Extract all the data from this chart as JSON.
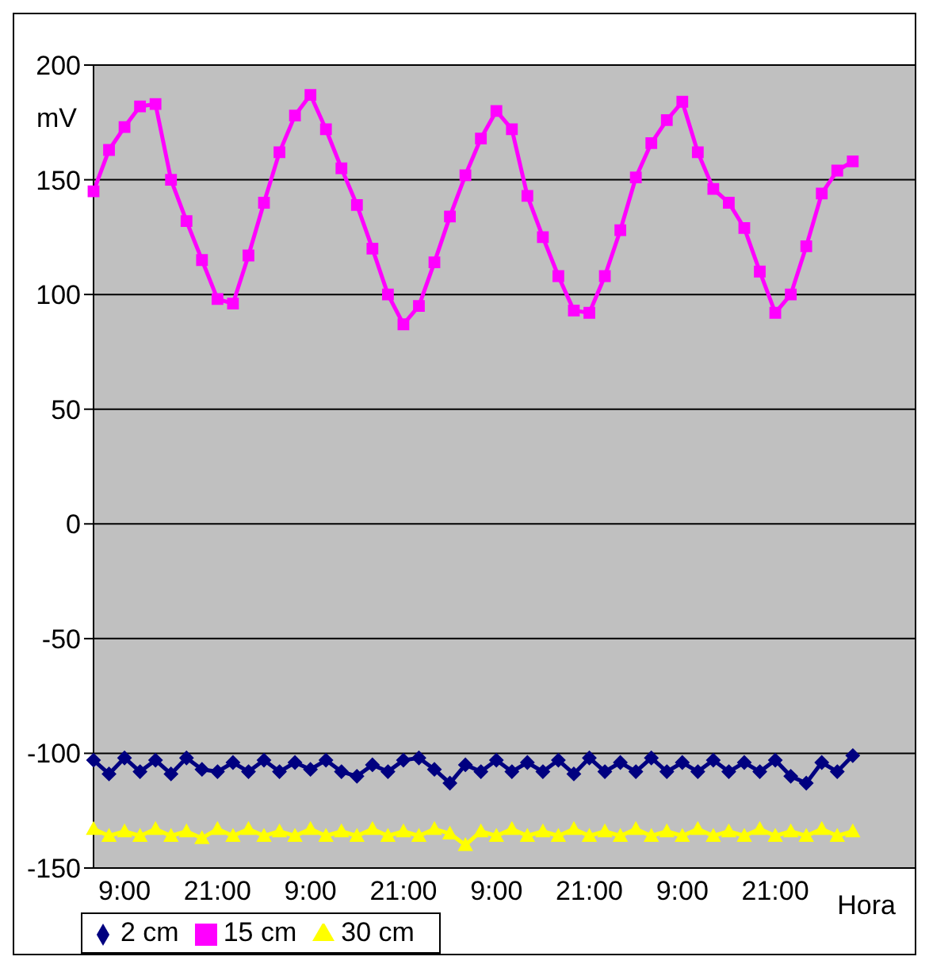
{
  "chart_data": {
    "type": "line",
    "xlabel": "Hora",
    "ylabel": "mV",
    "categories": [
      null,
      null,
      "9:00",
      null,
      null,
      null,
      null,
      null,
      "21:00",
      null,
      null,
      null,
      null,
      null,
      "9:00",
      null,
      null,
      null,
      null,
      null,
      "21:00",
      null,
      null,
      null,
      null,
      null,
      "9:00",
      null,
      null,
      null,
      null,
      null,
      "21:00",
      null,
      null,
      null,
      null,
      null,
      "9:00",
      null,
      null,
      null,
      null,
      null,
      "21:00",
      null,
      null,
      null,
      null,
      null,
      null,
      null,
      null,
      null
    ],
    "ylim": [
      -150,
      200
    ],
    "yticks": [
      -150,
      -100,
      -50,
      0,
      50,
      100,
      150,
      200
    ],
    "grid": "y",
    "legend": "bottom",
    "line_style": "solid",
    "series": [
      {
        "name": "2 cm",
        "color": "#000080",
        "marker": "diamond",
        "values": [
          -103,
          -109,
          -102,
          -108,
          -103,
          -109,
          -102,
          -107,
          -108,
          -104,
          -108,
          -103,
          -108,
          -104,
          -107,
          -103,
          -108,
          -110,
          -105,
          -108,
          -103,
          -102,
          -107,
          -113,
          -105,
          -108,
          -103,
          -108,
          -104,
          -108,
          -103,
          -109,
          -102,
          -108,
          -104,
          -108,
          -102,
          -108,
          -104,
          -108,
          -103,
          -108,
          -104,
          -108,
          -103,
          -110,
          -113,
          -104,
          -108,
          -101,
          null,
          null,
          null,
          null
        ]
      },
      {
        "name": "15 cm",
        "color": "#ff00ff",
        "marker": "square",
        "values": [
          145,
          163,
          173,
          182,
          183,
          150,
          132,
          115,
          98,
          96,
          117,
          140,
          162,
          178,
          187,
          172,
          155,
          139,
          120,
          100,
          87,
          95,
          114,
          134,
          152,
          168,
          180,
          172,
          143,
          125,
          108,
          93,
          92,
          108,
          128,
          151,
          166,
          176,
          184,
          162,
          146,
          140,
          129,
          110,
          92,
          100,
          121,
          144,
          154,
          158,
          null,
          null,
          null,
          null
        ]
      },
      {
        "name": "30 cm",
        "color": "#ffff00",
        "marker": "triangle",
        "values": [
          -133,
          -136,
          -134,
          -136,
          -133,
          -136,
          -134,
          -137,
          -133,
          -136,
          -133,
          -136,
          -134,
          -136,
          -133,
          -136,
          -134,
          -136,
          -133,
          -136,
          -134,
          -136,
          -133,
          -135,
          -140,
          -134,
          -136,
          -133,
          -136,
          -134,
          -136,
          -133,
          -136,
          -134,
          -136,
          -133,
          -136,
          -134,
          -136,
          -133,
          -136,
          -134,
          -136,
          -133,
          -136,
          -134,
          -136,
          -133,
          -136,
          -134,
          null,
          null,
          null,
          null
        ]
      }
    ]
  }
}
